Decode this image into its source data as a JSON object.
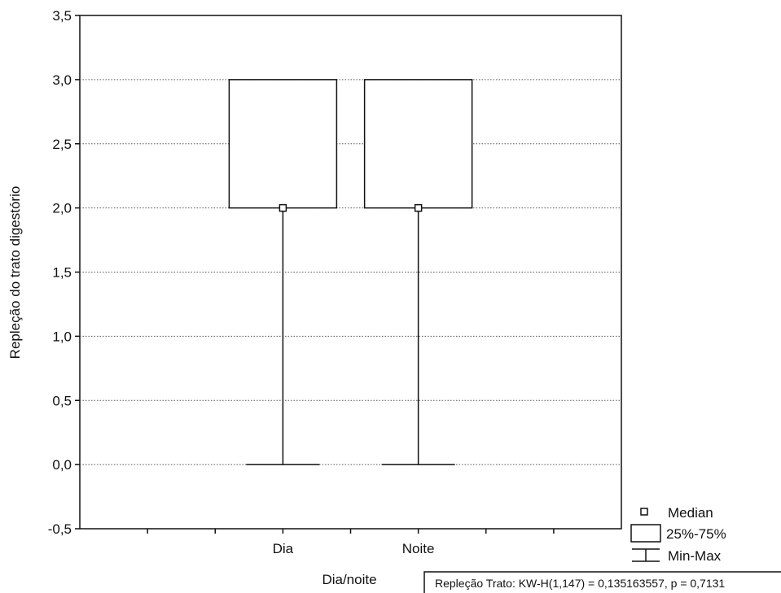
{
  "chart_data": {
    "type": "box",
    "xlabel": "Dia/noite",
    "ylabel": "Repleção do trato digestório",
    "ylim": [
      -0.5,
      3.5
    ],
    "y_ticks": [
      -0.5,
      0.0,
      0.5,
      1.0,
      1.5,
      2.0,
      2.5,
      3.0,
      3.5
    ],
    "y_tick_labels": [
      "-0,5",
      "0,0",
      "0,5",
      "1,0",
      "1,5",
      "2,0",
      "2,5",
      "3,0",
      "3,5"
    ],
    "gridlines": "horizontal dotted",
    "categories": [
      "Dia",
      "Noite"
    ],
    "boxes": [
      {
        "category": "Dia",
        "median": 2.0,
        "q1": 2.0,
        "q3": 3.0,
        "min": 0.0,
        "max": 3.0
      },
      {
        "category": "Noite",
        "median": 2.0,
        "q1": 2.0,
        "q3": 3.0,
        "min": 0.0,
        "max": 3.0
      }
    ],
    "legend": {
      "placement": "bottom-right",
      "items": [
        {
          "symbol": "square-marker",
          "label": "Median"
        },
        {
          "symbol": "box",
          "label": "25%-75%"
        },
        {
          "symbol": "whisker",
          "label": "Min-Max"
        }
      ]
    },
    "annotation": "Repleção Trato:  KW-H(1,147) = 0,135163557, p = 0,7131",
    "colors": {
      "stroke": "#111111",
      "grid": "#555555",
      "background": "#ffffff"
    }
  }
}
